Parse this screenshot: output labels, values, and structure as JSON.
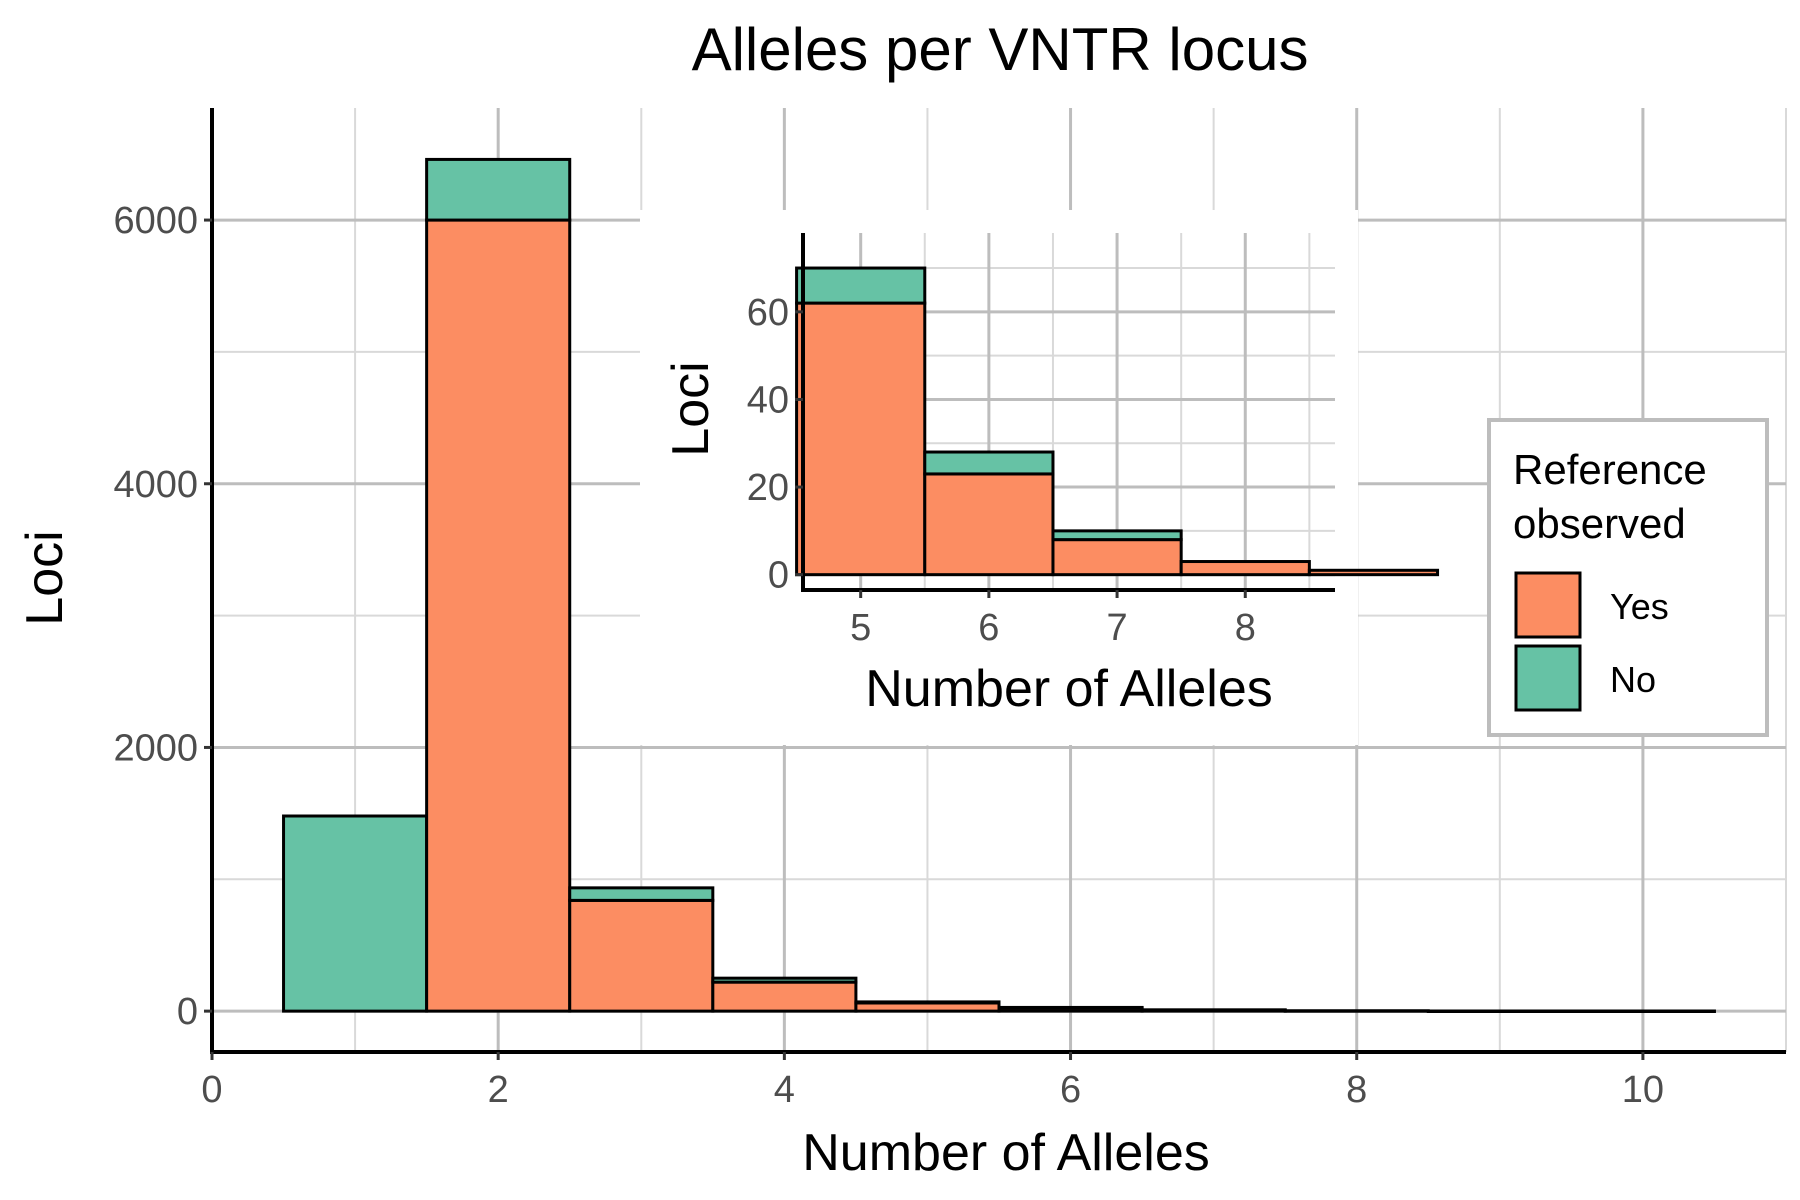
{
  "chart_data": [
    {
      "type": "bar",
      "stacked": true,
      "title": "Alleles per VNTR locus",
      "xlabel": "Number of Alleles",
      "ylabel": "Loci",
      "x": [
        1,
        2,
        3,
        4,
        5,
        6,
        7,
        8,
        9,
        10
      ],
      "series": [
        {
          "name": "Yes",
          "values": [
            0,
            6000,
            840,
            220,
            62,
            23,
            8,
            3,
            1,
            1
          ]
        },
        {
          "name": "No",
          "values": [
            1480,
            460,
            95,
            30,
            8,
            5,
            2,
            0,
            0,
            0
          ]
        }
      ],
      "xlim": [
        0,
        11
      ],
      "ylim": [
        -310,
        6850
      ],
      "xticks": [
        0,
        2,
        4,
        6,
        8,
        10
      ],
      "yticks": [
        0,
        2000,
        4000,
        6000
      ],
      "grid": true,
      "legend_position": "right"
    },
    {
      "type": "bar",
      "stacked": true,
      "inset": true,
      "xlabel": "Number of Alleles",
      "ylabel": "Loci",
      "x": [
        5,
        6,
        7,
        8,
        9
      ],
      "series": [
        {
          "name": "Yes",
          "values": [
            62,
            23,
            8,
            3,
            1
          ]
        },
        {
          "name": "No",
          "values": [
            8,
            5,
            2,
            0,
            0
          ]
        }
      ],
      "xlim": [
        4.55,
        8.7
      ],
      "ylim": [
        -3.5,
        78
      ],
      "xticks": [
        5,
        6,
        7,
        8
      ],
      "yticks": [
        0,
        20,
        40,
        60
      ],
      "grid": true
    }
  ],
  "legend": {
    "title_line1": "Reference",
    "title_line2": "observed",
    "items": [
      {
        "label": "Yes",
        "color": "#fc8d62"
      },
      {
        "label": "No",
        "color": "#66c2a5"
      }
    ]
  }
}
